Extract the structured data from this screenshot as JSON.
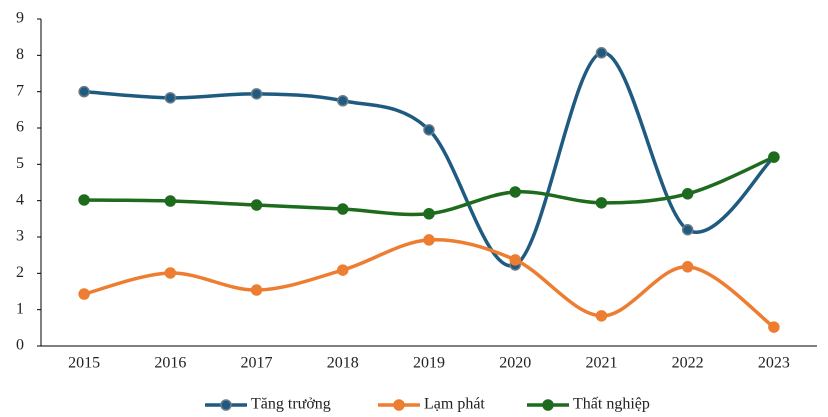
{
  "chart_data": {
    "type": "line",
    "categories": [
      "2015",
      "2016",
      "2017",
      "2018",
      "2019",
      "2020",
      "2021",
      "2022",
      "2023"
    ],
    "series": [
      {
        "name": "Tăng trưởng",
        "color": "#1f5b80",
        "values": [
          7.0,
          6.83,
          6.94,
          6.75,
          5.95,
          2.23,
          8.07,
          3.2,
          5.2
        ]
      },
      {
        "name": "Lạm phát",
        "color": "#ed7d31",
        "values": [
          1.43,
          2.01,
          1.54,
          2.09,
          2.92,
          2.37,
          0.83,
          2.18,
          0.52
        ]
      },
      {
        "name": "Thất nghiệp",
        "color": "#1e6b1e",
        "values": [
          4.02,
          3.99,
          3.88,
          3.77,
          3.64,
          4.24,
          3.94,
          4.19,
          5.2
        ]
      }
    ],
    "ylim": [
      0,
      9
    ],
    "yticks": [
      0,
      1,
      2,
      3,
      4,
      5,
      6,
      7,
      8,
      9
    ],
    "legend": "bottom"
  }
}
